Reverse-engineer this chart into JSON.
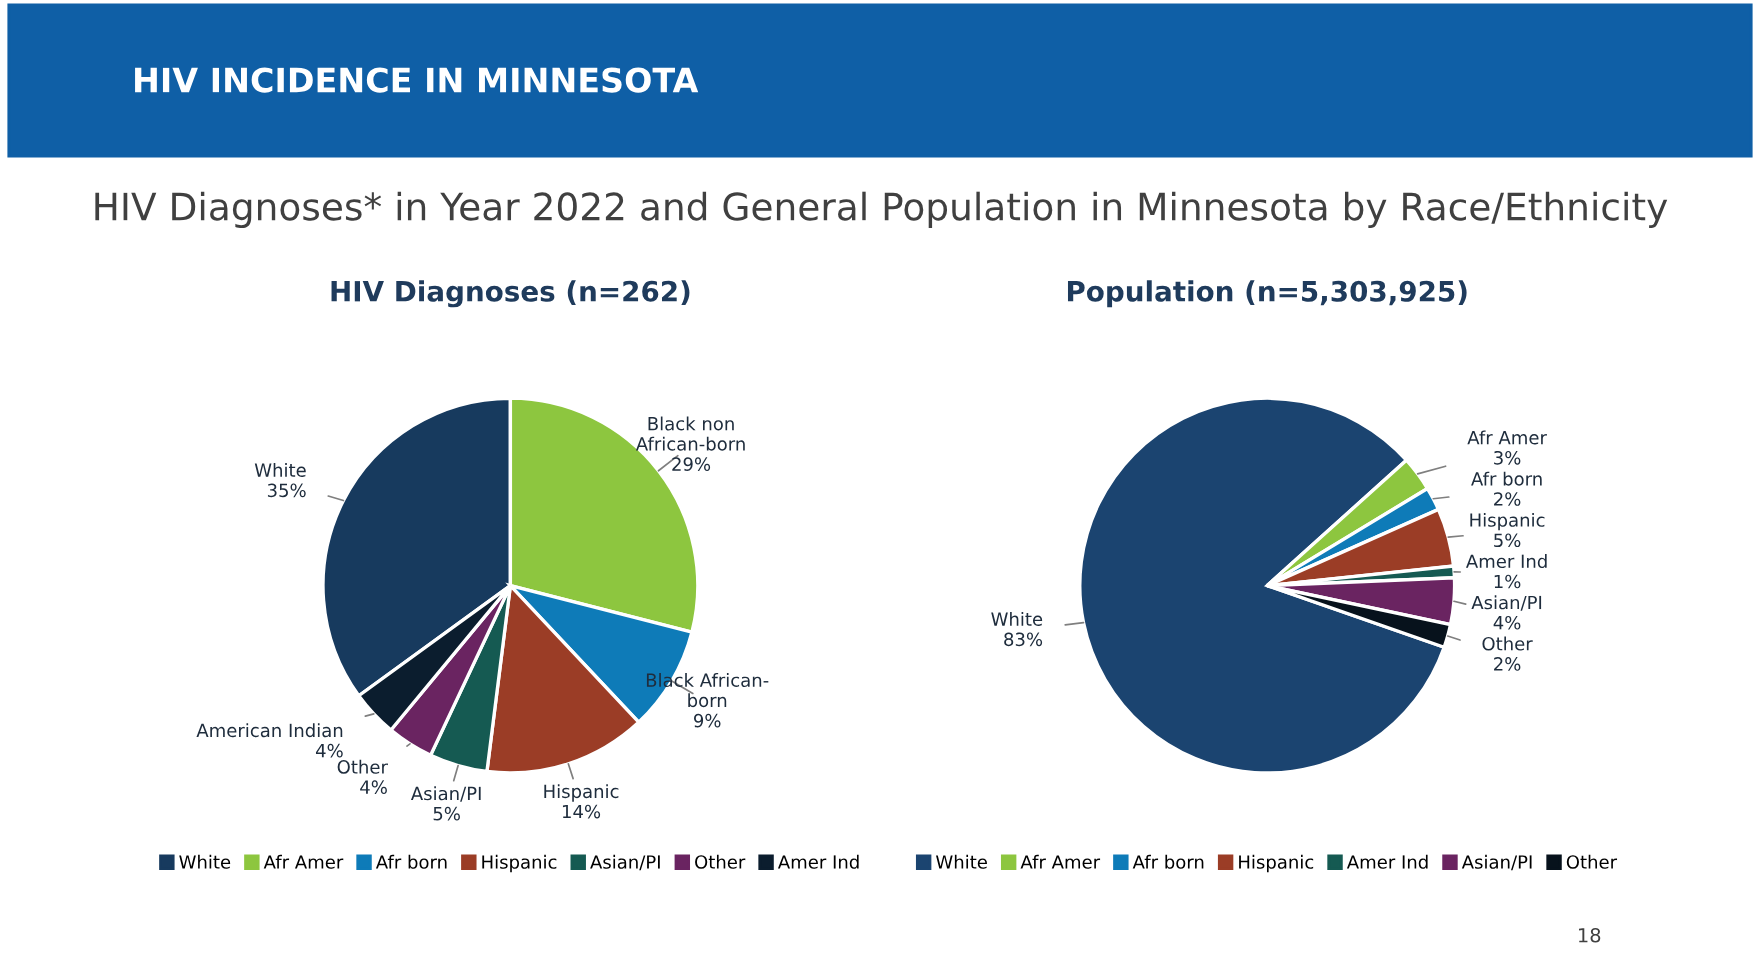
{
  "chart_data": [
    {
      "type": "pie",
      "title": "HIV Diagnoses (n=262)",
      "annotations": [
        "HIV INCIDENCE IN MINNESOTA",
        "HIV Diagnoses* in Year 2022 and General Population in Minnesota by Race/Ethnicity",
        "18"
      ],
      "categories": [
        "White",
        "Afr Amer",
        "Afr born",
        "Hispanic",
        "Asian/PI",
        "Other",
        "Amer Ind"
      ],
      "values": [
        35,
        29,
        9,
        14,
        5,
        4,
        4
      ],
      "value_labels": [
        "White\n35%",
        "Black non\nAfrican-born\n29%",
        "Black African-\nborn\n9%",
        "Hispanic\n14%",
        "Asian/PI\n5%",
        "Other\n4%",
        "American Indian\n4%"
      ],
      "colors": [
        "#173a5e",
        "#8dc63f",
        "#0e7bb8",
        "#9b3d26",
        "#155a52",
        "#6a2461",
        "#0b1d2e"
      ],
      "legend": "bottom"
    },
    {
      "type": "pie",
      "title": "Population (n=5,303,925)",
      "categories": [
        "White",
        "Afr Amer",
        "Afr born",
        "Hispanic",
        "Amer Ind",
        "Asian/PI",
        "Other"
      ],
      "values": [
        83,
        3,
        2,
        5,
        1,
        4,
        2
      ],
      "value_labels": [
        "White\n83%",
        "Afr Amer\n3%",
        "Afr born\n2%",
        "Hispanic\n5%",
        "Amer Ind\n1%",
        "Asian/PI\n4%",
        "Other\n2%"
      ],
      "colors": [
        "#1b4470",
        "#8dc63f",
        "#0e7bb8",
        "#9b3d26",
        "#155a52",
        "#6a2461",
        "#07121c"
      ],
      "legend": "bottom"
    }
  ]
}
